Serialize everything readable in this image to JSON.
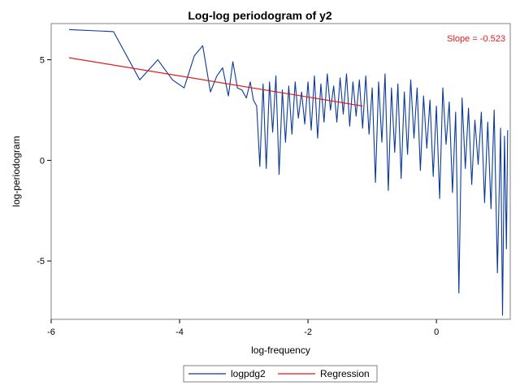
{
  "chart_data": {
    "type": "line",
    "title": "Log-log periodogram of y2",
    "xlabel": "log-frequency",
    "ylabel": "log-periodogram",
    "xlim": [
      -6.0,
      1.15
    ],
    "ylim": [
      -7.9,
      6.8
    ],
    "xticks": [
      -6,
      -4,
      -2,
      0
    ],
    "xtick_labels": [
      "-6",
      "-4",
      "-2",
      "0"
    ],
    "yticks": [
      -5,
      0,
      5
    ],
    "ytick_labels": [
      "-5",
      "0",
      "5"
    ],
    "annotation": {
      "text": "Slope = -0.523",
      "color": "#e31a1c",
      "position": "top-right"
    },
    "legend": {
      "position": "bottom-center",
      "entries": [
        "logpdg2",
        "Regression"
      ]
    },
    "grid": false,
    "colors": {
      "logpdg2": "#0b3a99",
      "regression": "#e31a1c"
    },
    "series": [
      {
        "name": "logpdg2",
        "type": "line",
        "x": [
          -5.72,
          -5.03,
          -4.62,
          -4.34,
          -4.11,
          -3.93,
          -3.77,
          -3.64,
          -3.52,
          -3.42,
          -3.33,
          -3.24,
          -3.17,
          -3.1,
          -3.03,
          -2.96,
          -2.9,
          -2.85,
          -2.8,
          -2.75,
          -2.7,
          -2.65,
          -2.6,
          -2.55,
          -2.5,
          -2.45,
          -2.4,
          -2.35,
          -2.3,
          -2.25,
          -2.2,
          -2.15,
          -2.1,
          -2.05,
          -2.0,
          -1.95,
          -1.9,
          -1.85,
          -1.8,
          -1.75,
          -1.7,
          -1.65,
          -1.6,
          -1.55,
          -1.5,
          -1.45,
          -1.4,
          -1.35,
          -1.3,
          -1.25,
          -1.2,
          -1.15,
          -1.1,
          -1.05,
          -1.0,
          -0.95,
          -0.9,
          -0.85,
          -0.8,
          -0.75,
          -0.7,
          -0.65,
          -0.6,
          -0.55,
          -0.5,
          -0.45,
          -0.4,
          -0.35,
          -0.3,
          -0.25,
          -0.2,
          -0.15,
          -0.1,
          -0.05,
          0.0,
          0.05,
          0.1,
          0.15,
          0.2,
          0.25,
          0.3,
          0.35,
          0.4,
          0.45,
          0.5,
          0.55,
          0.6,
          0.65,
          0.7,
          0.75,
          0.8,
          0.85,
          0.9,
          0.95,
          1.0,
          1.03,
          1.06,
          1.09,
          1.11
        ],
        "y": [
          6.5,
          6.4,
          4.0,
          5.0,
          4.0,
          3.6,
          5.2,
          5.7,
          3.4,
          4.2,
          4.6,
          3.2,
          4.9,
          3.6,
          3.5,
          3.1,
          3.9,
          3.0,
          2.7,
          -0.3,
          3.8,
          -0.4,
          3.9,
          1.4,
          4.2,
          -0.7,
          3.5,
          0.9,
          3.7,
          1.3,
          3.9,
          2.1,
          3.4,
          1.8,
          3.9,
          1.5,
          4.2,
          1.1,
          3.8,
          1.9,
          4.3,
          2.5,
          3.7,
          1.9,
          4.1,
          2.3,
          4.3,
          1.7,
          3.9,
          2.2,
          4.0,
          1.6,
          4.2,
          1.3,
          3.6,
          -1.1,
          3.9,
          0.9,
          4.3,
          -1.5,
          3.6,
          0.4,
          3.8,
          -0.9,
          3.4,
          0.3,
          4.0,
          1.1,
          3.6,
          -0.5,
          3.2,
          0.6,
          3.0,
          -0.8,
          2.7,
          -1.9,
          3.6,
          0.8,
          2.9,
          -1.6,
          2.4,
          -6.6,
          3.1,
          -0.4,
          2.6,
          -1.2,
          2.0,
          -0.2,
          2.4,
          -2.1,
          1.9,
          -2.4,
          2.5,
          -5.6,
          1.6,
          -7.7,
          1.2,
          -4.4,
          1.5
        ]
      },
      {
        "name": "Regression",
        "type": "line",
        "x": [
          -5.72,
          -1.15
        ],
        "y": [
          5.1,
          2.7
        ]
      }
    ]
  }
}
